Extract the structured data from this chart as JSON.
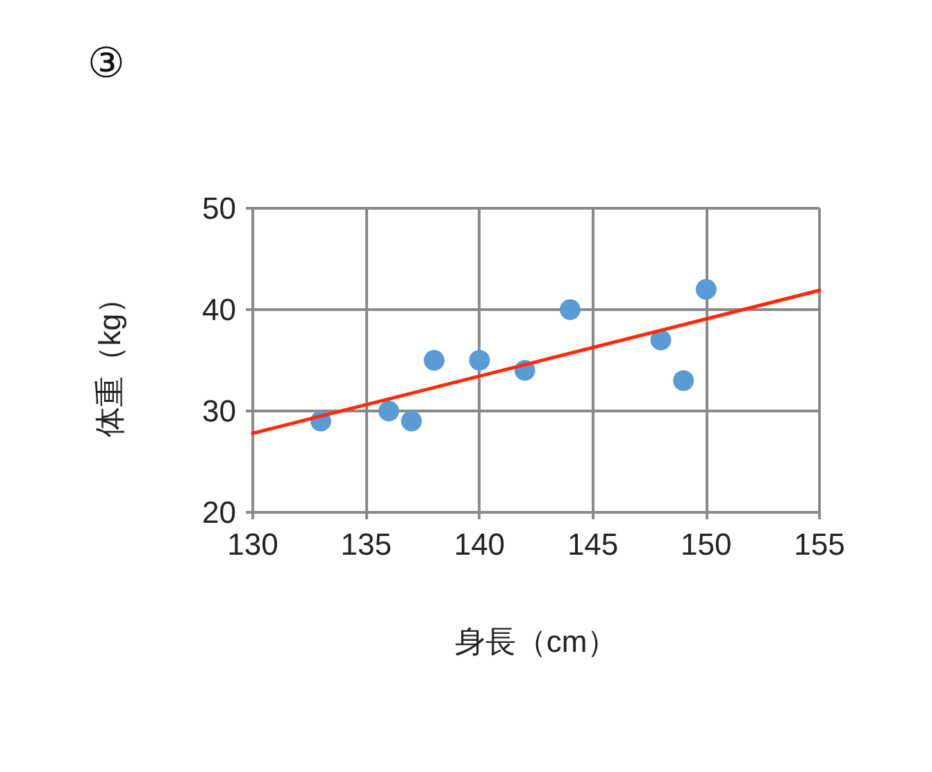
{
  "chart_data": {
    "type": "scatter",
    "title": "③",
    "xlabel": "身長（cm）",
    "ylabel": "体重（kg）",
    "xlim": [
      130,
      155
    ],
    "xticks": [
      130,
      135,
      140,
      145,
      150,
      155
    ],
    "ylim": [
      20,
      50
    ],
    "yticks": [
      20,
      30,
      40,
      50
    ],
    "grid": true,
    "marker": "circle",
    "series": [
      {
        "color": "#5b9bd5",
        "x": [
          133,
          136,
          137,
          138,
          140,
          142,
          144,
          148,
          149,
          150
        ],
        "values": [
          29,
          30,
          29,
          35,
          35,
          34,
          40,
          37,
          33,
          42
        ]
      },
      {
        "type": "line",
        "color": "#ff2a0a",
        "x": [
          130,
          155
        ],
        "values": [
          27.8,
          41.9
        ],
        "marker": "none",
        "line_style": "solid"
      }
    ]
  }
}
